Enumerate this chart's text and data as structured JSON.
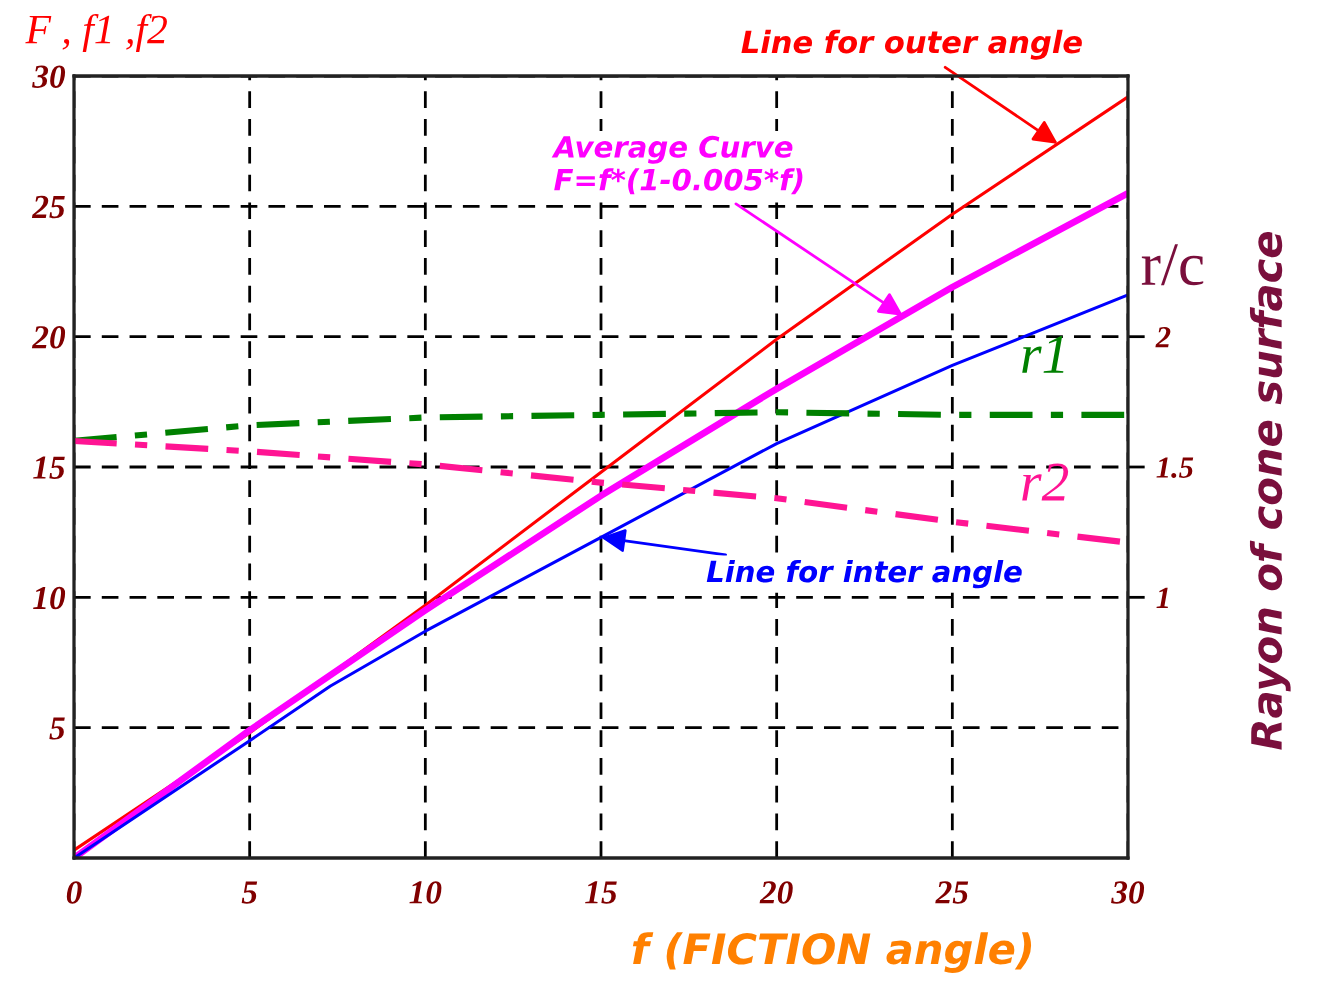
{
  "chart_data": {
    "type": "line",
    "xlabel": "f (FICTION angle)",
    "ylabel": "F , f1 ,f2",
    "y2label": "Rayon of cone surface",
    "annotations": [
      {
        "text": "Line for outer angle",
        "x": 28,
        "y": 27.4
      },
      {
        "text": "Average Curve\nF=f*(1-0.005*f)",
        "x": 23.6,
        "y": 20.8
      },
      {
        "text": "Line for inter angle",
        "x": 15,
        "y": 12.3
      },
      "r/c"
    ],
    "xlim": [
      0,
      30
    ],
    "xticks": [
      0,
      5,
      10,
      15,
      20,
      25,
      30
    ],
    "ylim": [
      0,
      30
    ],
    "yticks": [
      5,
      10,
      15,
      20,
      25,
      30
    ],
    "y2lim": [
      0,
      3
    ],
    "y2ticks": [
      1,
      1.5,
      2
    ],
    "grid": true,
    "series": [
      {
        "color": "#ff0000",
        "x": [
          0,
          5,
          10,
          15,
          20,
          25,
          30
        ],
        "values": [
          0.3,
          4.8,
          9.7,
          14.8,
          19.9,
          24.7,
          29.2
        ]
      },
      {
        "color": "#ff00ff",
        "x": [
          0,
          5,
          10,
          15,
          20,
          25,
          30
        ],
        "values": [
          0,
          4.9,
          9.5,
          13.9,
          18.0,
          21.9,
          25.5
        ]
      },
      {
        "color": "#0000ff",
        "x": [
          0,
          5,
          7.3,
          10,
          15,
          20,
          25,
          30
        ],
        "values": [
          0,
          4.5,
          6.6,
          8.7,
          12.3,
          15.9,
          18.9,
          21.6
        ]
      },
      {
        "name": "r1",
        "color": "#008000",
        "axis": "y2",
        "line_style": "dashdot",
        "x": [
          0,
          5,
          10,
          15,
          20,
          25,
          30
        ],
        "values": [
          1.6,
          1.66,
          1.69,
          1.7,
          1.71,
          1.7,
          1.7
        ]
      },
      {
        "name": "r2",
        "color": "#ff1493",
        "axis": "y2",
        "line_style": "dashdot",
        "x": [
          0,
          5,
          10,
          15,
          20,
          25,
          30
        ],
        "values": [
          1.6,
          1.56,
          1.51,
          1.44,
          1.38,
          1.29,
          1.21
        ]
      }
    ]
  }
}
